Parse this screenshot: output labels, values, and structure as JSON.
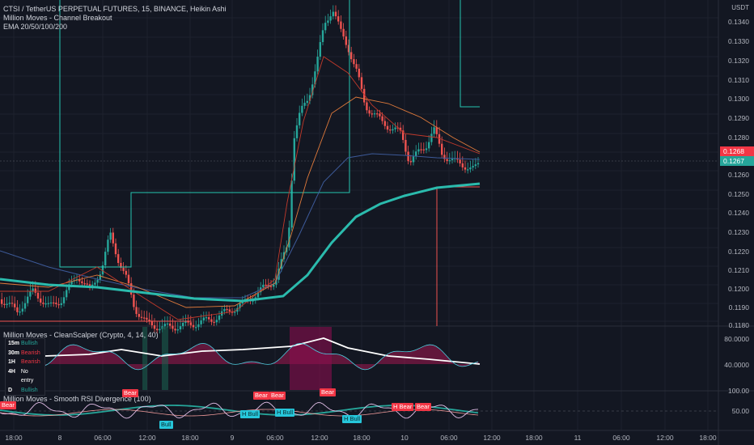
{
  "legend": {
    "symbol": "CTSI / TetherUS PERPETUAL FUTURES, 15, BINANCE, Heikin Ashi",
    "indicator1": "Million Moves - Channel Breakout",
    "indicator2": "EMA 20/50/100/200"
  },
  "price_axis": {
    "currency": "USDT",
    "ticks": [
      "0.1340",
      "0.1330",
      "0.1320",
      "0.1310",
      "0.1300",
      "0.1290",
      "0.1280",
      "0.1260",
      "0.1250",
      "0.1240",
      "0.1230",
      "0.1220",
      "0.1210",
      "0.1200",
      "0.1190",
      "0.1180"
    ],
    "last_price": "0.1268",
    "ema_price": "0.1267"
  },
  "scalper_pane": {
    "title": "Million Moves - CleanScalper (Crypto, 4, 14, 40)",
    "ticks": [
      "80.0000",
      "40.0000"
    ],
    "table": [
      {
        "tf": "15m",
        "state": "Bullish",
        "color": "#26a69a"
      },
      {
        "tf": "30m",
        "state": "Bearish",
        "color": "#f23645"
      },
      {
        "tf": "1H",
        "state": "Bearish",
        "color": "#f23645"
      },
      {
        "tf": "4H",
        "state": "No entry",
        "color": "#ffffff"
      },
      {
        "tf": "D",
        "state": "Bullish",
        "color": "#26a69a"
      }
    ]
  },
  "rsi_pane": {
    "title": "Million Moves - Smooth RSI Divergence (100)",
    "ticks": [
      "100.00",
      "50.00"
    ],
    "bear_label": "Bear",
    "bull_label": "Bull",
    "h_bull_label": "H Bull",
    "h_bear_label": "H Bear"
  },
  "time_axis": [
    "18:00",
    "8",
    "06:00",
    "12:00",
    "18:00",
    "9",
    "06:00",
    "12:00",
    "18:00",
    "10",
    "06:00",
    "12:00",
    "18:00",
    "11",
    "06:00",
    "12:00",
    "18:00"
  ],
  "colors": {
    "up": "#26a69a",
    "down": "#ef5350",
    "ema200": "#2bbbad",
    "channel": "#26c6b0"
  }
}
